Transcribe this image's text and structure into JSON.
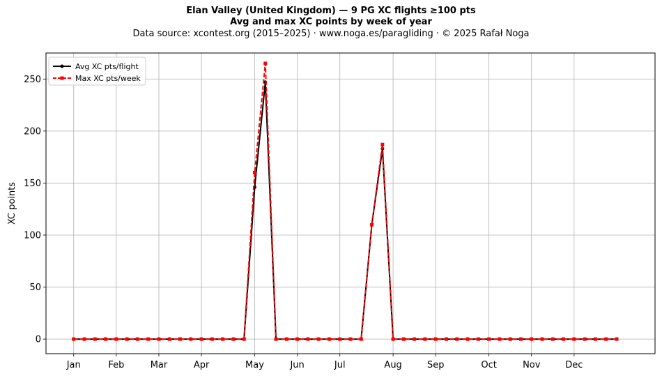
{
  "title_line1": "Elan Valley (United Kingdom)  —  9 PG XC flights ≥100 pts",
  "title_line2": "Avg and max XC points by week of year",
  "title_line3": "Data source: xcontest.org (2015–2025)  ·  www.noga.es/paragliding  ·  © 2025 Rafał Noga",
  "chart_data": {
    "type": "line",
    "ylabel": "XC points",
    "xlabel": "",
    "ylim": [
      -14,
      275
    ],
    "yticks": [
      0,
      50,
      100,
      150,
      200,
      250
    ],
    "grid": true,
    "legend_position": "top-left",
    "x_unit": "week of year",
    "month_ticks": [
      {
        "label": "Jan",
        "week": 1
      },
      {
        "label": "Feb",
        "week": 5
      },
      {
        "label": "Mar",
        "week": 9
      },
      {
        "label": "Apr",
        "week": 13
      },
      {
        "label": "May",
        "week": 18
      },
      {
        "label": "Jun",
        "week": 22
      },
      {
        "label": "Jul",
        "week": 26
      },
      {
        "label": "Aug",
        "week": 31
      },
      {
        "label": "Sep",
        "week": 35
      },
      {
        "label": "Oct",
        "week": 40
      },
      {
        "label": "Nov",
        "week": 44
      },
      {
        "label": "Dec",
        "week": 48
      }
    ],
    "x": [
      1,
      2,
      3,
      4,
      5,
      6,
      7,
      8,
      9,
      10,
      11,
      12,
      13,
      14,
      15,
      16,
      17,
      18,
      19,
      20,
      21,
      22,
      23,
      24,
      25,
      26,
      27,
      28,
      29,
      30,
      31,
      32,
      33,
      34,
      35,
      36,
      37,
      38,
      39,
      40,
      41,
      42,
      43,
      44,
      45,
      46,
      47,
      48,
      49,
      50,
      51,
      52
    ],
    "series": [
      {
        "name": "Avg XC pts/flight",
        "color": "#000000",
        "style": "solid",
        "marker": "circle",
        "values": [
          0,
          0,
          0,
          0,
          0,
          0,
          0,
          0,
          0,
          0,
          0,
          0,
          0,
          0,
          0,
          0,
          0,
          146,
          247,
          0,
          0,
          0,
          0,
          0,
          0,
          0,
          0,
          0,
          110,
          183,
          0,
          0,
          0,
          0,
          0,
          0,
          0,
          0,
          0,
          0,
          0,
          0,
          0,
          0,
          0,
          0,
          0,
          0,
          0,
          0,
          0,
          0
        ]
      },
      {
        "name": "Max XC pts/week",
        "color": "#ff0000",
        "style": "dashed",
        "marker": "square",
        "values": [
          0,
          0,
          0,
          0,
          0,
          0,
          0,
          0,
          0,
          0,
          0,
          0,
          0,
          0,
          0,
          0,
          0,
          160,
          265,
          0,
          0,
          0,
          0,
          0,
          0,
          0,
          0,
          0,
          110,
          187,
          0,
          0,
          0,
          0,
          0,
          0,
          0,
          0,
          0,
          0,
          0,
          0,
          0,
          0,
          0,
          0,
          0,
          0,
          0,
          0,
          0,
          0
        ]
      }
    ]
  }
}
